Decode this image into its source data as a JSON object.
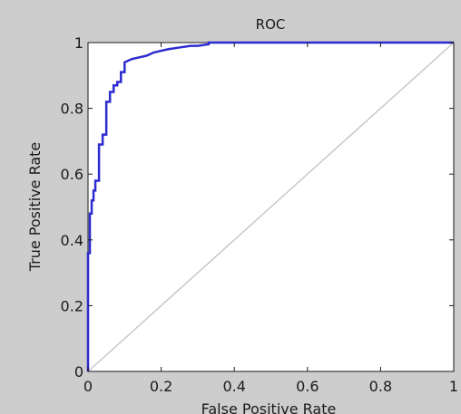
{
  "chart_data": {
    "type": "line",
    "title": "ROC",
    "xlabel": "False Positive Rate",
    "ylabel": "True Positive Rate",
    "xlim": [
      0,
      1
    ],
    "ylim": [
      0,
      1
    ],
    "xticks": [
      0,
      0.2,
      0.4,
      0.6,
      0.8,
      1
    ],
    "xtick_labels": [
      "0",
      "0.2",
      "0.4",
      "0.6",
      "0.8",
      "1"
    ],
    "yticks": [
      0,
      0.2,
      0.4,
      0.6,
      0.8,
      1
    ],
    "ytick_labels": [
      "0",
      "0.2",
      "0.4",
      "0.6",
      "0.8",
      "1"
    ],
    "grid": false,
    "legend": "none",
    "series": [
      {
        "color": "#2b2bd0",
        "x": [
          0,
          0,
          0.005,
          0.005,
          0.01,
          0.01,
          0.015,
          0.015,
          0.02,
          0.02,
          0.03,
          0.03,
          0.04,
          0.04,
          0.05,
          0.05,
          0.06,
          0.06,
          0.07,
          0.07,
          0.08,
          0.08,
          0.09,
          0.09,
          0.1,
          0.1,
          0.12,
          0.14,
          0.16,
          0.18,
          0.2,
          0.22,
          0.25,
          0.28,
          0.3,
          0.33,
          0.33,
          0.4,
          0.5,
          0.6,
          0.7,
          0.8,
          0.9,
          1
        ],
        "y": [
          0,
          0.36,
          0.36,
          0.48,
          0.48,
          0.52,
          0.52,
          0.55,
          0.55,
          0.58,
          0.58,
          0.69,
          0.69,
          0.72,
          0.72,
          0.82,
          0.82,
          0.85,
          0.85,
          0.87,
          0.87,
          0.88,
          0.88,
          0.91,
          0.91,
          0.94,
          0.95,
          0.955,
          0.96,
          0.97,
          0.975,
          0.98,
          0.985,
          0.99,
          0.99,
          0.995,
          1,
          1,
          1,
          1,
          1,
          1,
          1,
          1
        ]
      },
      {
        "color": "#c8c8c8",
        "x": [
          0,
          1
        ],
        "y": [
          0,
          1
        ]
      }
    ]
  }
}
